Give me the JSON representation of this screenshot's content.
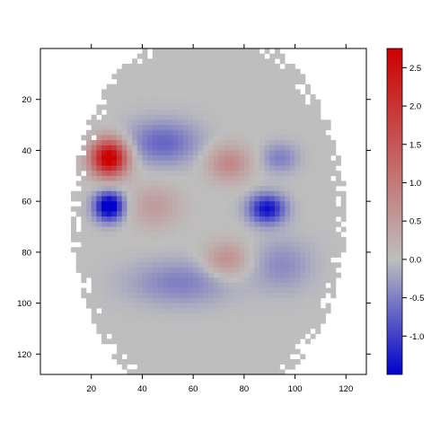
{
  "chart_data": {
    "type": "heatmap",
    "title": "",
    "xlabel": "",
    "ylabel": "",
    "xlim": [
      0,
      128
    ],
    "ylim": [
      128,
      0
    ],
    "x_ticks": [
      {
        "value": 20,
        "label": "20"
      },
      {
        "value": 40,
        "label": "40"
      },
      {
        "value": 60,
        "label": "60"
      },
      {
        "value": 80,
        "label": "80"
      },
      {
        "value": 100,
        "label": "100"
      },
      {
        "value": 120,
        "label": "120"
      }
    ],
    "y_ticks": [
      {
        "value": 20,
        "label": "20"
      },
      {
        "value": 40,
        "label": "40"
      },
      {
        "value": 60,
        "label": "60"
      },
      {
        "value": 80,
        "label": "80"
      },
      {
        "value": 100,
        "label": "100"
      },
      {
        "value": 120,
        "label": "120"
      }
    ],
    "colorbar": {
      "range": [
        -1.5,
        2.75
      ],
      "ticks": [
        {
          "value": 2.5,
          "label": "2.5"
        },
        {
          "value": 2.0,
          "label": "2.0"
        },
        {
          "value": 1.5,
          "label": "1.5"
        },
        {
          "value": 1.0,
          "label": "1.0"
        },
        {
          "value": 0.5,
          "label": "0.5"
        },
        {
          "value": 0.0,
          "label": "0.0"
        },
        {
          "value": -0.5,
          "label": "-0.5"
        },
        {
          "value": -1.0,
          "label": "-1.0"
        }
      ],
      "colors": {
        "low": "#0000cc",
        "mid": "#bebebe",
        "high": "#cc0000"
      }
    },
    "grid": false,
    "mask": {
      "center": [
        66,
        66
      ],
      "radius_x": 54,
      "radius_y": 76
    },
    "blobs": [
      {
        "label": "left frontal hot spot",
        "x": 27,
        "y": 43,
        "value": 3.0,
        "sx": 5,
        "sy": 5
      },
      {
        "label": "left edge cold spot",
        "x": 27,
        "y": 62,
        "value": -1.8,
        "sx": 4,
        "sy": 4
      },
      {
        "label": "right cold spot",
        "x": 89,
        "y": 63,
        "value": -1.4,
        "sx": 5,
        "sy": 4
      },
      {
        "label": "frontal cold region",
        "x": 48,
        "y": 37,
        "value": -0.7,
        "sx": 10,
        "sy": 6
      },
      {
        "label": "right cold patch",
        "x": 94,
        "y": 43,
        "value": -0.5,
        "sx": 5,
        "sy": 4
      },
      {
        "label": "central warm patch",
        "x": 74,
        "y": 45,
        "value": 0.8,
        "sx": 6,
        "sy": 5
      },
      {
        "label": "lower warm patch",
        "x": 73,
        "y": 83,
        "value": 0.7,
        "sx": 6,
        "sy": 5
      },
      {
        "label": "left warm patch",
        "x": 45,
        "y": 62,
        "value": 0.5,
        "sx": 7,
        "sy": 6
      },
      {
        "label": "lower left cool region",
        "x": 55,
        "y": 92,
        "value": -0.5,
        "sx": 14,
        "sy": 6
      },
      {
        "label": "lower right cool region",
        "x": 95,
        "y": 85,
        "value": -0.4,
        "sx": 8,
        "sy": 7
      }
    ]
  }
}
